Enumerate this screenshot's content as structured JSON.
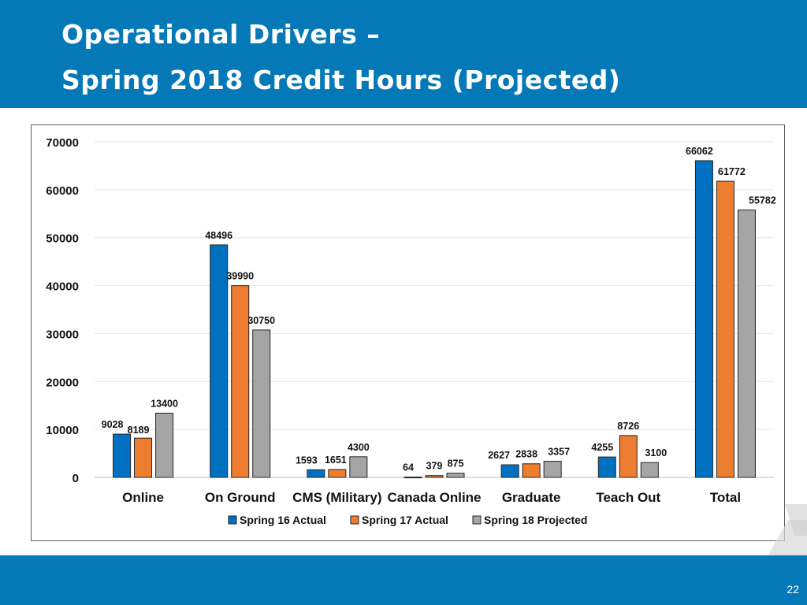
{
  "slide": {
    "title_line1": "Operational Drivers –",
    "title_line2": "Spring 2018 Credit Hours (Projected)",
    "page_number": "22",
    "colors": {
      "header": "#0579b8",
      "footer": "#0579b8"
    }
  },
  "chart_data": {
    "type": "bar",
    "title": "",
    "xlabel": "",
    "ylabel": "",
    "ylim": [
      0,
      70000
    ],
    "yticks": [
      0,
      10000,
      20000,
      30000,
      40000,
      50000,
      60000,
      70000
    ],
    "grid": true,
    "legend_position": "bottom",
    "categories": [
      "Online",
      "On Ground",
      "CMS (Military)",
      "Canada Online",
      "Graduate",
      "Teach Out",
      "Total"
    ],
    "series": [
      {
        "name": "Spring 16 Actual",
        "color": "#0070c0",
        "values": [
          9028,
          48496,
          1593,
          64,
          2627,
          4255,
          66062
        ]
      },
      {
        "name": "Spring 17 Actual",
        "color": "#ed7d31",
        "values": [
          8189,
          39990,
          1651,
          379,
          2838,
          8726,
          61772
        ]
      },
      {
        "name": "Spring 18 Projected",
        "color": "#a5a5a5",
        "values": [
          13400,
          30750,
          4300,
          875,
          3357,
          3100,
          55782
        ]
      }
    ]
  }
}
